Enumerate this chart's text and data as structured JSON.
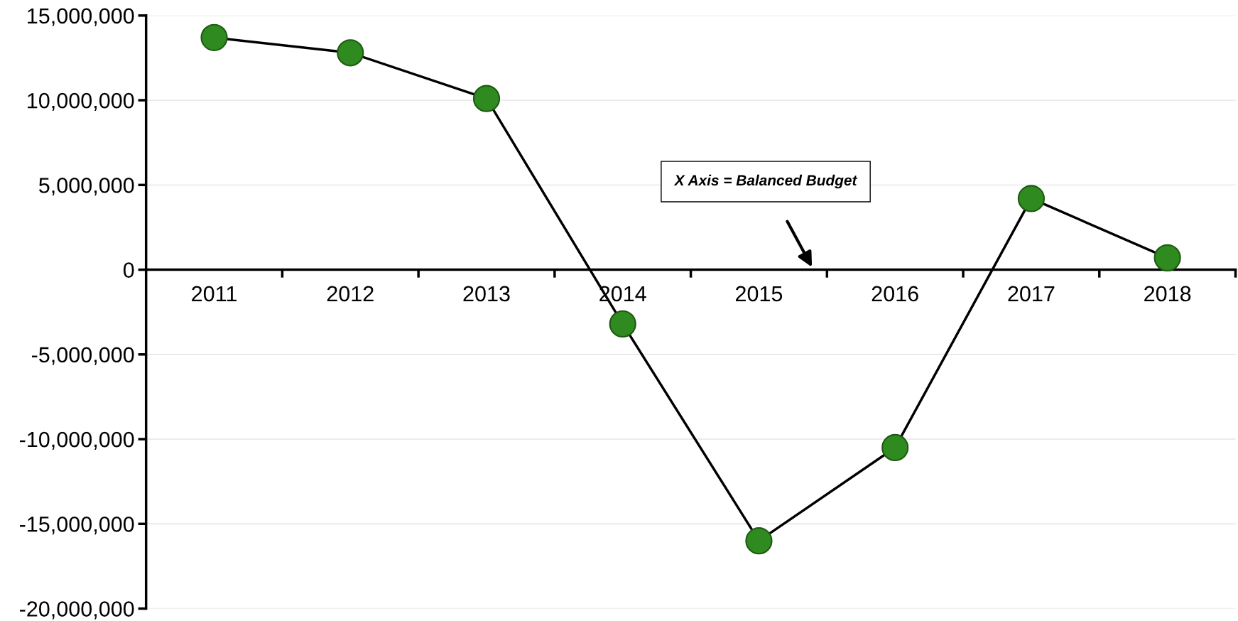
{
  "chart_data": {
    "type": "line",
    "categories": [
      "2011",
      "2012",
      "2013",
      "2014",
      "2015",
      "2016",
      "2017",
      "2018"
    ],
    "series": [
      {
        "color": "#2f8a1f",
        "values": [
          13700000,
          12800000,
          10100000,
          -3200000,
          -16000000,
          -10500000,
          4200000,
          700000
        ]
      }
    ],
    "ylim": [
      -20000000,
      15000000
    ],
    "yticks": [
      {
        "value": -20000000,
        "label": "-20,000,000"
      },
      {
        "value": -15000000,
        "label": "-15,000,000"
      },
      {
        "value": -10000000,
        "label": "-10,000,000"
      },
      {
        "value": -5000000,
        "label": "-5,000,000"
      },
      {
        "value": 0,
        "label": "0"
      },
      {
        "value": 5000000,
        "label": "5,000,000"
      },
      {
        "value": 10000000,
        "label": "10,000,000"
      },
      {
        "value": 15000000,
        "label": "15,000,000"
      }
    ],
    "grid": "y",
    "marker": "circle",
    "line_style": "solid",
    "annotations": [
      "X Axis = Balanced Budget"
    ]
  }
}
